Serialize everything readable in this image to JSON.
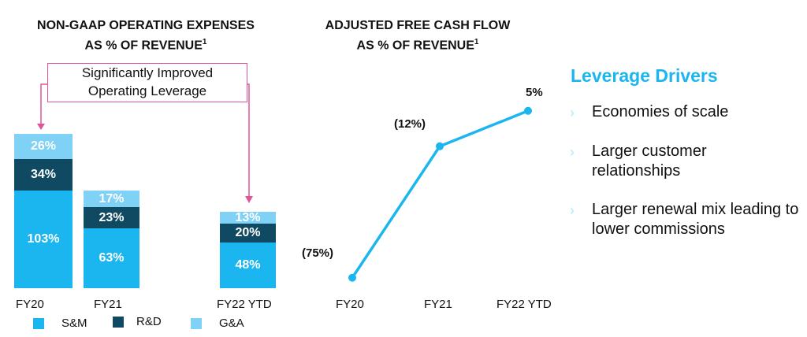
{
  "colors": {
    "sm": "#1bb6ef",
    "rd": "#0f4a62",
    "ga": "#7fd2f6",
    "line": "#1bb6ef",
    "callout": "#e0559a",
    "accent": "#1bb6ef"
  },
  "chart_data": [
    {
      "type": "bar",
      "stacked": true,
      "title_line1": "NON-GAAP OPERATING EXPENSES",
      "title_line2": "AS % OF REVENUE",
      "footnote": "1",
      "categories": [
        "FY20",
        "FY21",
        "FY22 YTD"
      ],
      "series": [
        {
          "name": "S&M",
          "values": [
            103,
            63,
            48
          ],
          "labels": [
            "103%",
            "63%",
            "48%"
          ]
        },
        {
          "name": "R&D",
          "values": [
            34,
            23,
            20
          ],
          "labels": [
            "34%",
            "23%",
            "20%"
          ]
        },
        {
          "name": "G&A",
          "values": [
            26,
            17,
            13
          ],
          "labels": [
            "26%",
            "17%",
            "13%"
          ]
        }
      ],
      "legend": "bottom",
      "annotation": {
        "line1": "Significantly Improved",
        "line2": "Operating Leverage"
      }
    },
    {
      "type": "line",
      "title_line1": "ADJUSTED FREE CASH FLOW",
      "title_line2": "AS % OF REVENUE",
      "footnote": "1",
      "categories": [
        "FY20",
        "FY21",
        "FY22 YTD"
      ],
      "values": [
        -75,
        -12,
        5
      ],
      "labels": [
        "(75%)",
        "(12%)",
        "5%"
      ]
    }
  ],
  "drivers": {
    "title": "Leverage Drivers",
    "bullet_icon": "chevron-right-icon",
    "items": [
      "Economies of scale",
      "Larger customer relationships",
      "Larger renewal mix leading to lower commissions"
    ]
  }
}
